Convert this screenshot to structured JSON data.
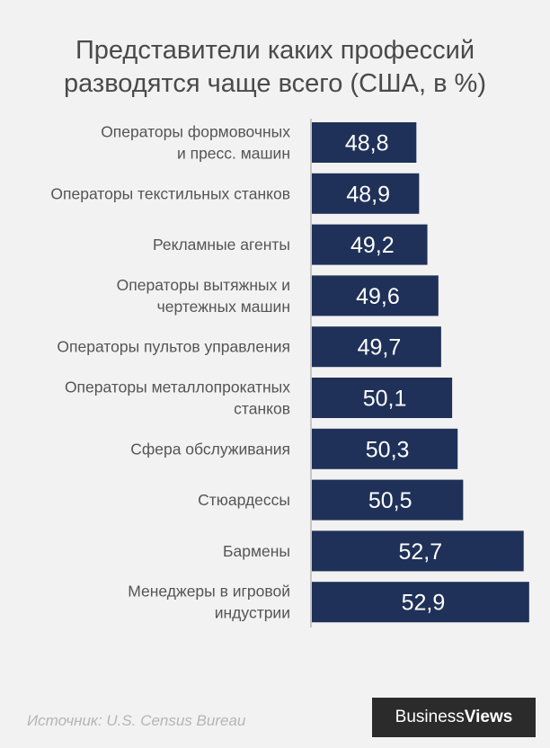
{
  "title": "Представители каких профессий\nразводятся чаще  всего (США, в %)",
  "source": "Источник: U.S. Census Bureau",
  "brand": {
    "part1": "Business",
    "part2": "Views"
  },
  "colors": {
    "bar": "#1f3158",
    "axis": "#9a9a9a",
    "label": "#555555",
    "value_text": "#ffffff",
    "background": "#f2f2f2"
  },
  "chart_data": {
    "type": "bar",
    "orientation": "horizontal",
    "categories": [
      "Операторы формовочных\nи пресс. машин",
      "Операторы текстильных станков",
      "Рекламные агенты",
      "Операторы вытяжных и\nчертежных машин",
      "Операторы пультов управления",
      "Операторы металлопрокатных\nстанков",
      "Сфера обслуживания",
      "Стюардессы",
      "Бармены",
      "Менеджеры в игровой\nиндустрии"
    ],
    "values": [
      48.8,
      48.9,
      49.2,
      49.6,
      49.7,
      50.1,
      50.3,
      50.5,
      52.7,
      52.9
    ],
    "value_labels": [
      "48,8",
      "48,9",
      "49,2",
      "49,6",
      "49,7",
      "50,1",
      "50,3",
      "50,5",
      "52,7",
      "52,9"
    ],
    "xlim": [
      45,
      53.2
    ],
    "grid": false
  }
}
